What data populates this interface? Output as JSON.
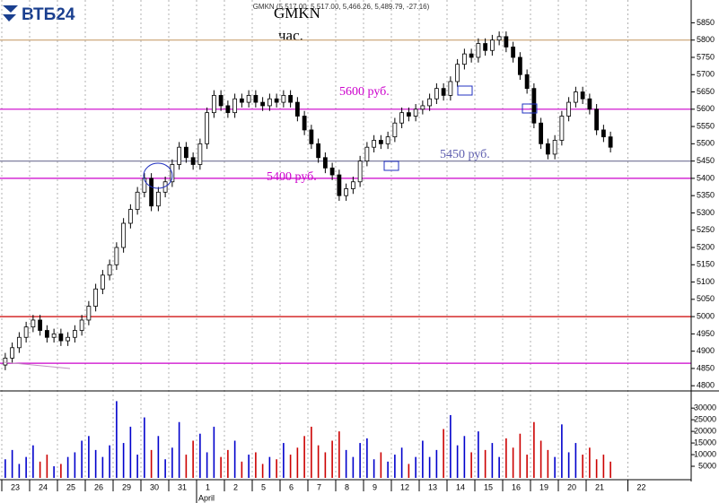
{
  "brand": "ВТБ24",
  "chart_data": {
    "type": "candlestick",
    "title": "GMKN",
    "subtitle": "час.",
    "header": "GMKN (5,517.00, 5,517.00, 5,466.26, 5,489.79, -27.16)",
    "month_label": "April",
    "categories": [
      "23",
      null,
      null,
      null,
      "24",
      null,
      null,
      null,
      "25",
      null,
      null,
      null,
      "26",
      null,
      null,
      null,
      "29",
      null,
      null,
      null,
      "30",
      null,
      null,
      null,
      "31",
      null,
      null,
      null,
      "1",
      null,
      null,
      null,
      "2",
      null,
      null,
      null,
      "5",
      null,
      null,
      null,
      "6",
      null,
      null,
      null,
      "7",
      null,
      null,
      null,
      "8",
      null,
      null,
      null,
      "9",
      null,
      null,
      null,
      "12",
      null,
      null,
      null,
      "13",
      null,
      null,
      null,
      "14",
      null,
      null,
      null,
      "15",
      null,
      null,
      null,
      "16",
      null,
      null,
      null,
      "19",
      null,
      null,
      null,
      "20",
      null,
      null,
      null,
      "21",
      null,
      null,
      null,
      null,
      null,
      "22",
      null
    ],
    "open": [
      4860,
      4880,
      4910,
      4940,
      4970,
      4990,
      4960,
      4940,
      4950,
      4930,
      4940,
      4960,
      4990,
      5030,
      5080,
      5120,
      5150,
      5200,
      5270,
      5310,
      5360,
      5400,
      5320,
      5360,
      5390,
      5440,
      5490,
      5460,
      5440,
      5500,
      5590,
      5640,
      5610,
      5590,
      5630,
      5620,
      5640,
      5620,
      5610,
      5630,
      5620,
      5640,
      5620,
      5580,
      5540,
      5500,
      5460,
      5430,
      5410,
      5350,
      5370,
      5390,
      5450,
      5490,
      5510,
      5500,
      5520,
      5560,
      5590,
      5580,
      5600,
      5610,
      5630,
      5660,
      5640,
      5680,
      5730,
      5760,
      5750,
      5790,
      5770,
      5800,
      5810,
      5780,
      5750,
      5700,
      5660,
      5560,
      5500,
      5470,
      5510,
      5580,
      5620,
      5650,
      5630,
      5600,
      5540,
      5520,
      null,
      null,
      null,
      null
    ],
    "high": [
      4895,
      4925,
      4955,
      4985,
      5005,
      5005,
      4975,
      4965,
      4965,
      4955,
      4975,
      5005,
      5045,
      5095,
      5135,
      5165,
      5215,
      5285,
      5325,
      5375,
      5415,
      5415,
      5375,
      5405,
      5455,
      5505,
      5505,
      5475,
      5515,
      5605,
      5655,
      5655,
      5625,
      5645,
      5645,
      5655,
      5655,
      5635,
      5645,
      5645,
      5655,
      5655,
      5635,
      5595,
      5555,
      5515,
      5475,
      5445,
      5425,
      5385,
      5405,
      5465,
      5505,
      5525,
      5525,
      5535,
      5575,
      5605,
      5605,
      5615,
      5625,
      5645,
      5675,
      5675,
      5695,
      5745,
      5775,
      5775,
      5805,
      5805,
      5815,
      5825,
      5825,
      5795,
      5765,
      5715,
      5675,
      5575,
      5515,
      5525,
      5595,
      5635,
      5665,
      5665,
      5645,
      5615,
      5555,
      5535,
      null,
      null,
      null,
      null
    ],
    "low": [
      4845,
      4865,
      4895,
      4925,
      4955,
      4945,
      4925,
      4925,
      4915,
      4915,
      4925,
      4945,
      4975,
      5015,
      5065,
      5105,
      5135,
      5185,
      5255,
      5295,
      5345,
      5305,
      5305,
      5345,
      5375,
      5425,
      5445,
      5425,
      5425,
      5485,
      5575,
      5595,
      5575,
      5575,
      5605,
      5605,
      5605,
      5595,
      5595,
      5605,
      5605,
      5605,
      5565,
      5525,
      5485,
      5445,
      5415,
      5395,
      5335,
      5335,
      5355,
      5375,
      5435,
      5475,
      5485,
      5485,
      5505,
      5545,
      5565,
      5565,
      5585,
      5595,
      5615,
      5625,
      5625,
      5665,
      5715,
      5735,
      5735,
      5755,
      5755,
      5785,
      5765,
      5735,
      5685,
      5645,
      5545,
      5485,
      5455,
      5455,
      5495,
      5565,
      5605,
      5615,
      5585,
      5525,
      5505,
      5475,
      null,
      null,
      null,
      null
    ],
    "close": [
      4880,
      4910,
      4940,
      4970,
      4990,
      4960,
      4940,
      4950,
      4930,
      4940,
      4960,
      4990,
      5030,
      5080,
      5120,
      5150,
      5200,
      5270,
      5310,
      5360,
      5400,
      5320,
      5360,
      5390,
      5440,
      5490,
      5460,
      5440,
      5500,
      5590,
      5640,
      5610,
      5590,
      5630,
      5620,
      5640,
      5620,
      5610,
      5630,
      5620,
      5640,
      5620,
      5580,
      5540,
      5500,
      5460,
      5430,
      5410,
      5350,
      5370,
      5390,
      5450,
      5490,
      5510,
      5500,
      5520,
      5560,
      5590,
      5580,
      5600,
      5610,
      5630,
      5660,
      5640,
      5680,
      5730,
      5760,
      5750,
      5790,
      5770,
      5800,
      5810,
      5780,
      5750,
      5700,
      5660,
      5560,
      5500,
      5470,
      5510,
      5580,
      5620,
      5650,
      5630,
      5600,
      5540,
      5520,
      5490,
      null,
      null,
      null,
      null
    ],
    "up_color": "#ffffff",
    "down_color": "#000000",
    "ylim": [
      4785,
      5890
    ],
    "yticks": [
      4800,
      4850,
      4900,
      4950,
      5000,
      5050,
      5100,
      5150,
      5200,
      5250,
      5300,
      5350,
      5400,
      5450,
      5500,
      5550,
      5600,
      5650,
      5700,
      5750,
      5800,
      5850
    ],
    "grid": true,
    "hlines": [
      {
        "value": 5800,
        "color": "#c8a070"
      },
      {
        "value": 5600,
        "color": "#cc00cc",
        "label": "5600 руб.",
        "label_color": "#cc00cc"
      },
      {
        "value": 5450,
        "color": "#8080a0",
        "label": "5450 руб.",
        "label_color": "#6060b0"
      },
      {
        "value": 5400,
        "color": "#cc00cc",
        "label": "5400 руб.",
        "label_color": "#cc00cc"
      },
      {
        "value": 5000,
        "color": "#cc0000"
      },
      {
        "value": 4865,
        "color": "#cc00cc"
      }
    ],
    "volume": {
      "values": [
        8000,
        12000,
        6000,
        9000,
        14000,
        7000,
        10000,
        5000,
        6000,
        9000,
        11000,
        16000,
        18000,
        12000,
        9000,
        14000,
        33000,
        15000,
        22000,
        10000,
        26000,
        12000,
        18000,
        8000,
        13000,
        24000,
        10000,
        16000,
        19000,
        11000,
        22000,
        9000,
        12000,
        16000,
        7000,
        10000,
        11000,
        6000,
        9000,
        8000,
        15000,
        10000,
        13000,
        18000,
        22000,
        14000,
        11000,
        16000,
        20000,
        12000,
        9000,
        15000,
        17000,
        8000,
        11000,
        7000,
        10000,
        13000,
        6000,
        9000,
        16000,
        9000,
        12000,
        21000,
        27000,
        14000,
        18000,
        11000,
        20000,
        12000,
        15000,
        9000,
        17000,
        13000,
        19000,
        10000,
        24000,
        16000,
        12000,
        9000,
        23000,
        11000,
        15000,
        10000,
        13000,
        8000,
        10000,
        7000,
        null,
        null,
        null,
        null
      ],
      "up_color": "#0000cc",
      "down_color": "#cc0000",
      "ylim": [
        0,
        37000
      ],
      "yticks": [
        5000,
        10000,
        15000,
        20000,
        25000,
        30000
      ]
    }
  }
}
